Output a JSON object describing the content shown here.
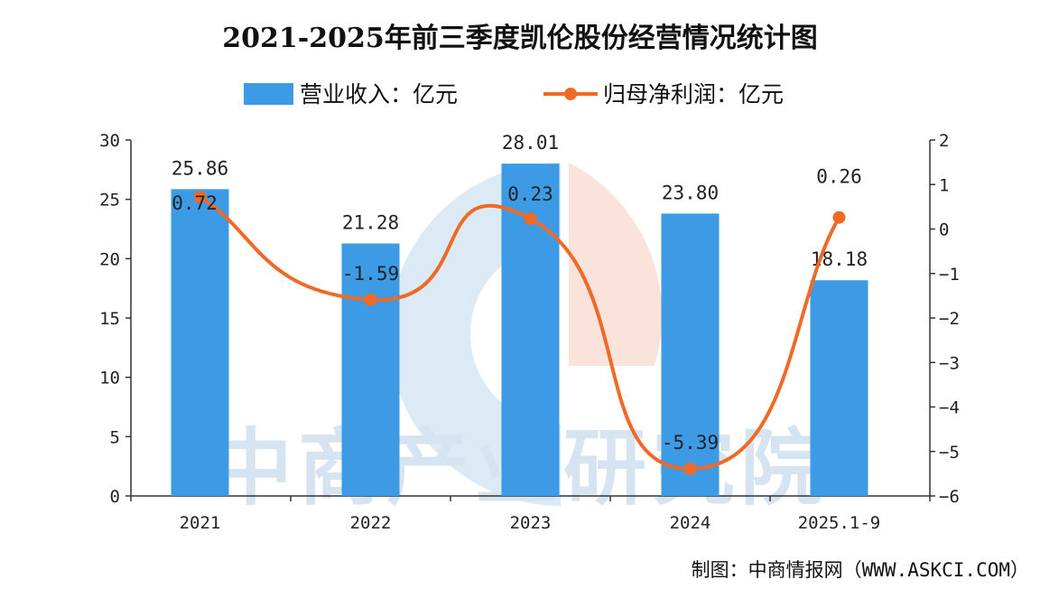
{
  "chart_data": {
    "type": "bar",
    "title": "2021-2025年前三季度凯伦股份经营情况统计图",
    "categories": [
      "2021",
      "2022",
      "2023",
      "2024",
      "2025.1-9"
    ],
    "series": [
      {
        "name": "营业收入：亿元",
        "type": "bar",
        "axis": "left",
        "values": [
          25.86,
          21.28,
          28.01,
          23.8,
          18.18
        ],
        "labels": [
          "25.86",
          "21.28",
          "28.01",
          "23.80",
          "18.18"
        ]
      },
      {
        "name": "归母净利润：亿元",
        "type": "line",
        "axis": "right",
        "values": [
          0.72,
          -1.59,
          0.23,
          -5.39,
          0.26
        ],
        "labels": [
          "0.72",
          "-1.59",
          "0.23",
          "-5.39",
          "0.26"
        ]
      }
    ],
    "y_left": {
      "lim": [
        0,
        30
      ],
      "ticks": [
        "0",
        "5",
        "10",
        "15",
        "20",
        "25",
        "30"
      ]
    },
    "y_right": {
      "lim": [
        -6,
        2
      ],
      "ticks": [
        "−6",
        "−5",
        "−4",
        "−3",
        "−2",
        "−1",
        "0",
        "1",
        "2"
      ]
    },
    "legend": "top-center",
    "grid": false,
    "colors": {
      "bar": "#3d9be6",
      "line": "#ef6a26"
    }
  },
  "watermark": "中商产业研究院",
  "source": "制图：中商情报网（WWW.ASKCI.COM）"
}
